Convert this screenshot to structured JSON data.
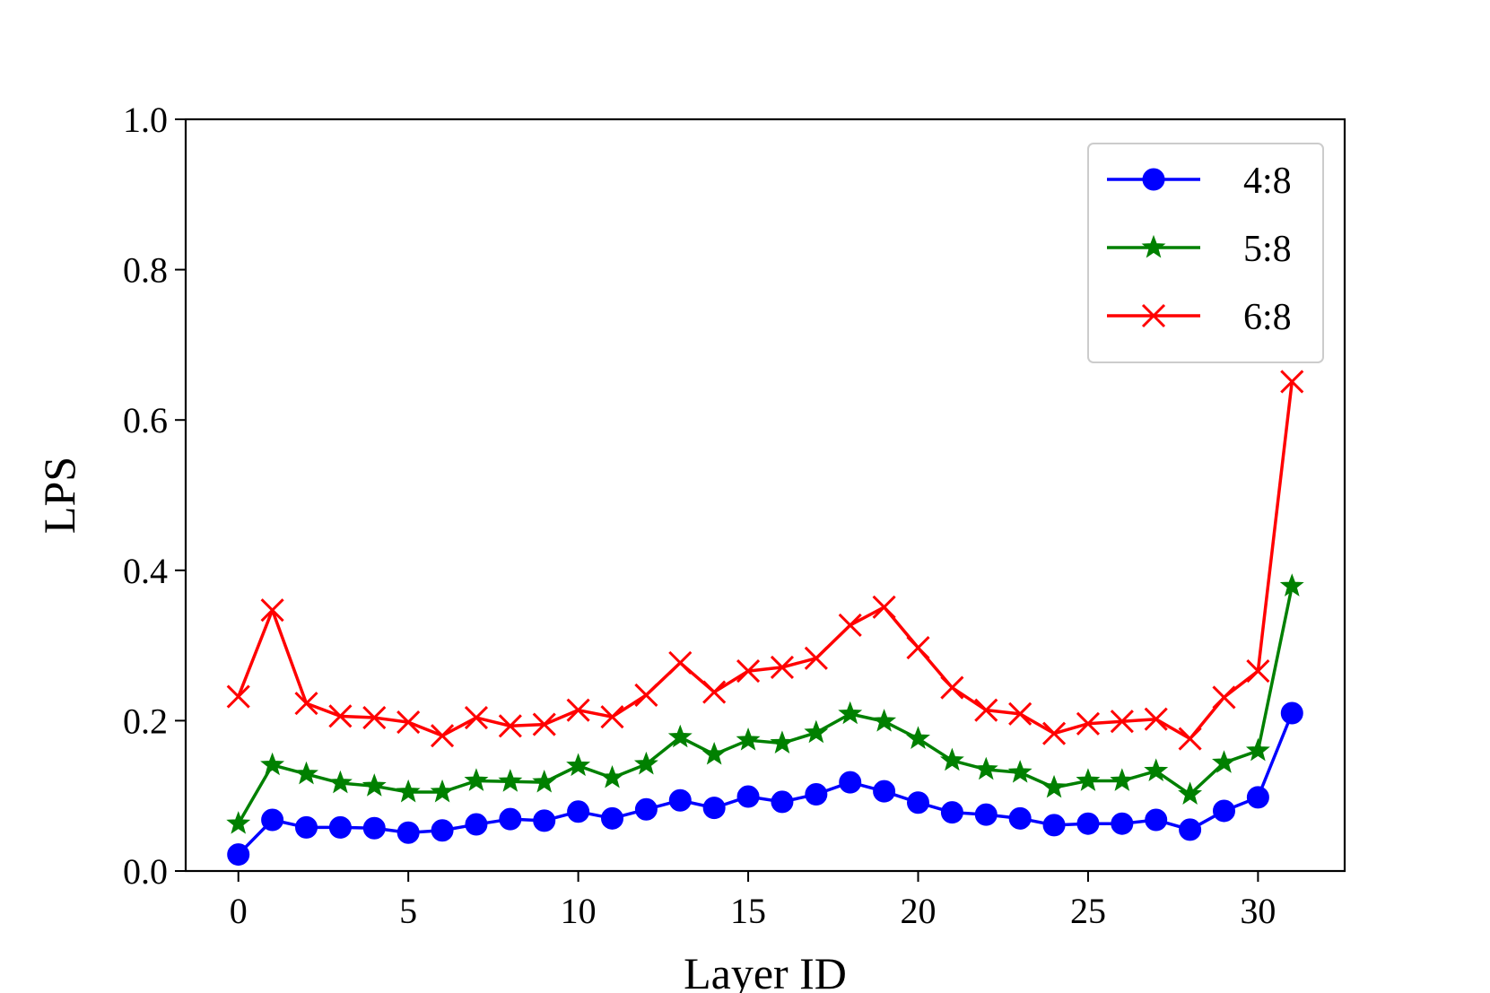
{
  "chart_data": {
    "type": "line",
    "title": "",
    "xlabel": "Layer ID",
    "ylabel": "LPS",
    "xlim": [
      -1.55,
      32.55
    ],
    "ylim": [
      0.0,
      1.0
    ],
    "xticks": [
      0,
      5,
      10,
      15,
      20,
      25,
      30
    ],
    "yticks": [
      0.0,
      0.2,
      0.4,
      0.6,
      0.8,
      1.0
    ],
    "xtick_labels": [
      "0",
      "5",
      "10",
      "15",
      "20",
      "25",
      "30"
    ],
    "ytick_labels": [
      "0.0",
      "0.2",
      "0.4",
      "0.6",
      "0.8",
      "1.0"
    ],
    "grid": false,
    "legend_position": "top-right",
    "x": [
      0,
      1,
      2,
      3,
      4,
      5,
      6,
      7,
      8,
      9,
      10,
      11,
      12,
      13,
      14,
      15,
      16,
      17,
      18,
      19,
      20,
      21,
      22,
      23,
      24,
      25,
      26,
      27,
      28,
      29,
      30,
      31
    ],
    "series": [
      {
        "name": "4:8",
        "color": "#0000ff",
        "marker": "circle",
        "values": [
          0.022,
          0.068,
          0.058,
          0.058,
          0.057,
          0.051,
          0.054,
          0.062,
          0.069,
          0.067,
          0.079,
          0.07,
          0.082,
          0.094,
          0.084,
          0.099,
          0.092,
          0.102,
          0.118,
          0.106,
          0.091,
          0.078,
          0.075,
          0.07,
          0.061,
          0.063,
          0.063,
          0.068,
          0.055,
          0.08,
          0.098,
          0.21
        ]
      },
      {
        "name": "5:8",
        "color": "#008000",
        "marker": "star",
        "values": [
          0.063,
          0.141,
          0.129,
          0.117,
          0.113,
          0.105,
          0.105,
          0.12,
          0.119,
          0.118,
          0.14,
          0.124,
          0.142,
          0.178,
          0.155,
          0.174,
          0.17,
          0.184,
          0.209,
          0.199,
          0.176,
          0.147,
          0.135,
          0.131,
          0.111,
          0.12,
          0.12,
          0.133,
          0.102,
          0.144,
          0.16,
          0.379
        ]
      },
      {
        "name": "6:8",
        "color": "#ff0000",
        "marker": "x",
        "values": [
          0.232,
          0.347,
          0.223,
          0.206,
          0.204,
          0.198,
          0.18,
          0.204,
          0.193,
          0.195,
          0.214,
          0.205,
          0.234,
          0.277,
          0.238,
          0.266,
          0.271,
          0.283,
          0.327,
          0.351,
          0.297,
          0.244,
          0.214,
          0.209,
          0.183,
          0.196,
          0.199,
          0.202,
          0.176,
          0.231,
          0.266,
          0.651
        ]
      }
    ]
  }
}
